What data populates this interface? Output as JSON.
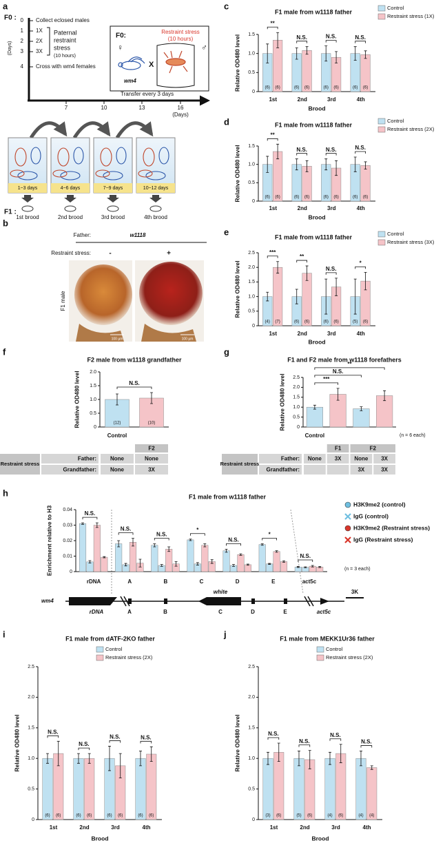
{
  "panel_labels": [
    "a",
    "b",
    "c",
    "d",
    "e",
    "f",
    "g",
    "h",
    "i",
    "j"
  ],
  "panel_a": {
    "generation_f0": "F0 :",
    "days_label": "(Days)",
    "day_ticks": [
      "0",
      "1",
      "2",
      "3",
      "4"
    ],
    "steps": [
      "Collect eclosed males",
      "1X",
      "2X",
      "3X",
      "Cross with wm4 females"
    ],
    "stress_label": [
      "Paternal",
      "restraint",
      "stress",
      "(10 hours)"
    ],
    "box_title": "F0:",
    "box_stress": "Restraint stress",
    "box_hours": "(10 hours)",
    "female_strain": "wm4",
    "cross": "X",
    "transfer": "Transfer every 3 days",
    "timeline_days": [
      "7",
      "10",
      "13",
      "16"
    ],
    "timeline_unit": "(Days)",
    "vials": [
      "1~3 days",
      "4~6 days",
      "7~9 days",
      "10~12 days"
    ],
    "generation_f1": "F1 :",
    "broods": [
      "1st brood",
      "2nd brood",
      "3rd brood",
      "4th brood"
    ]
  },
  "panel_b": {
    "father_label": "Father:",
    "father": "w1118",
    "stress_label": "Restraint stress:",
    "conditions": [
      "-",
      "+"
    ],
    "row_label": "F1 male",
    "scale_bars": [
      "100 µm",
      "100 µm"
    ]
  },
  "chart_data": [
    {
      "type": "bar",
      "title": "F1 male from w1118 father",
      "ylabel": "Relative OD480 level",
      "xlabel": "Brood",
      "categories": [
        "1st",
        "2nd",
        "3rd",
        "4th"
      ],
      "ylim": [
        0,
        1.5
      ],
      "yticks": [
        0,
        0.5,
        {
          "value": 1,
          "label": "1.0"
        },
        1.5
      ],
      "legend": true,
      "series": [
        {
          "name": "Control",
          "color": "#bfe1f1",
          "values": [
            1,
            1,
            1,
            1
          ],
          "errors": [
            0.25,
            0.15,
            0.2,
            0.18
          ],
          "n_labels": [
            "(6)",
            "(6)",
            "(6)",
            "(6)"
          ]
        },
        {
          "name": "Restraint stress (1X)",
          "color": "#f5c4c8",
          "values": [
            1.35,
            1.08,
            0.9,
            0.97
          ],
          "errors": [
            0.2,
            0.1,
            0.15,
            0.1
          ],
          "n_labels": [
            "(6)",
            "(6)",
            "(6)",
            "(6)"
          ]
        }
      ],
      "significance": [
        "**",
        "N.S.",
        "N.S.",
        "N.S."
      ]
    },
    {
      "type": "bar",
      "title": "F1 male from w1118 father",
      "ylabel": "Relative OD480 level",
      "xlabel": "Brood",
      "categories": [
        "1st",
        "2nd",
        "3rd",
        "4th"
      ],
      "ylim": [
        0,
        1.5
      ],
      "yticks": [
        0,
        0.5,
        {
          "value": 1,
          "label": "1.0"
        },
        1.5
      ],
      "legend": true,
      "series": [
        {
          "name": "Control",
          "color": "#bfe1f1",
          "values": [
            1,
            1,
            1,
            1
          ],
          "errors": [
            0.22,
            0.15,
            0.15,
            0.2
          ],
          "n_labels": [
            "(6)",
            "(6)",
            "(6)",
            "(6)"
          ]
        },
        {
          "name": "Restraint stress (2X)",
          "color": "#f5c4c8",
          "values": [
            1.35,
            0.95,
            0.9,
            0.97
          ],
          "errors": [
            0.2,
            0.15,
            0.2,
            0.1
          ],
          "n_labels": [
            "(6)",
            "(6)",
            "(6)",
            "(6)"
          ]
        }
      ],
      "significance": [
        "**",
        "N.S.",
        "N.S.",
        "N.S."
      ]
    },
    {
      "type": "bar",
      "title": "F1 male from w1118 father",
      "ylabel": "Relative OD480 level",
      "xlabel": "Brood",
      "categories": [
        "1st",
        "2nd",
        "3rd",
        "4th"
      ],
      "ylim": [
        0,
        2.5
      ],
      "yticks": [
        0,
        0.5,
        {
          "value": 1,
          "label": "1.0"
        },
        1.5,
        {
          "value": 2,
          "label": "2.0"
        },
        2.5
      ],
      "legend": true,
      "series": [
        {
          "name": "Control",
          "color": "#bfe1f1",
          "values": [
            1,
            1,
            1,
            1
          ],
          "errors": [
            0.15,
            0.25,
            0.6,
            0.6
          ],
          "n_labels": [
            "(4)",
            "(6)",
            "(6)",
            "(5)"
          ]
        },
        {
          "name": "Restraint stress (3X)",
          "color": "#f5c4c8",
          "values": [
            2,
            1.8,
            1.33,
            1.53
          ],
          "errors": [
            0.2,
            0.25,
            0.3,
            0.3
          ],
          "n_labels": [
            "(7)",
            "(6)",
            "(6)",
            "(6)"
          ]
        }
      ],
      "significance": [
        "***",
        "**",
        "N.S.",
        "*"
      ]
    },
    {
      "type": "bar",
      "title": "F2 male from w1118 grandfather",
      "ylabel": "Relative OD480 level",
      "categories": [
        "Control",
        null
      ],
      "ylim": [
        0,
        2
      ],
      "yticks": [
        0,
        0.5,
        {
          "value": 1,
          "label": "1.0"
        },
        1.5,
        {
          "value": 2,
          "label": "2.0"
        }
      ],
      "values": [
        1,
        1.05
      ],
      "errors": [
        0.2,
        0.2
      ],
      "colors": [
        "#bfe1f1",
        "#f5c4c8"
      ],
      "n_labels": [
        "(12)",
        "(10)"
      ],
      "significance": [
        "N.S."
      ]
    },
    {
      "type": "bar",
      "title": "F1 and F2 male from w1118 forefathers",
      "ylabel": "Relative OD480 level",
      "note": "(n = 6 each)",
      "categories": [
        "Control",
        null,
        null,
        null
      ],
      "ylim": [
        0,
        2.5
      ],
      "yticks": [
        0,
        0.5,
        {
          "value": 1,
          "label": "1.0"
        },
        1.5,
        {
          "value": 2,
          "label": "2.0"
        },
        2.5
      ],
      "values": [
        1,
        1.65,
        0.92,
        1.58
      ],
      "errors": [
        0.1,
        0.3,
        0.1,
        0.25
      ],
      "colors": [
        "#bfe1f1",
        "#f5c4c8",
        "#bfe1f1",
        "#f5c4c8"
      ],
      "significance": [
        "***",
        "N.S.",
        "**"
      ]
    },
    {
      "type": "bar",
      "title": "F1 male from w1118 father",
      "ylabel": "Enrichment relative to H3",
      "note": "(n = 3 each)",
      "categories": [
        "rDNA",
        "A",
        "B",
        "C",
        "D",
        "E",
        "act5c"
      ],
      "ylim": [
        0,
        0.04
      ],
      "yticks": [
        0,
        0.01,
        0.02,
        0.03,
        0.04
      ],
      "legend": true,
      "series": [
        {
          "name": "H3K9me2 (control)",
          "color": "#bfe1f1",
          "marker": "circle",
          "marker_color": "#6fbfe0",
          "values": [
            0.031,
            0.018,
            0.017,
            0.0205,
            0.0135,
            0.0175,
            0.003
          ],
          "errors": [
            0.0005,
            0.002,
            0.001,
            0.0005,
            0.001,
            0.0005,
            0.0003
          ]
        },
        {
          "name": "IgG (control)",
          "color": "#bfe1f1",
          "marker": "x",
          "marker_color": "#6fbfe0",
          "values": [
            0.0063,
            0.0045,
            0.004,
            0.005,
            0.004,
            0.005,
            0.0028
          ],
          "errors": [
            0.0008,
            0.0008,
            0.0006,
            0.0008,
            0.0006,
            0.0003,
            0.0003
          ]
        },
        {
          "name": "H3K9me2 (Restraint stress)",
          "color": "#f5c4c8",
          "marker": "circle",
          "marker_color": "#d9362b",
          "values": [
            0.03,
            0.019,
            0.0145,
            0.017,
            0.011,
            0.013,
            0.0035
          ],
          "errors": [
            0.0015,
            0.0025,
            0.0015,
            0.001,
            0.0005,
            0.0005,
            0.0005
          ]
        },
        {
          "name": "IgG (Restraint stress)",
          "color": "#f5c4c8",
          "marker": "x",
          "marker_color": "#d9362b",
          "values": [
            0.0093,
            0.0055,
            0.005,
            0.0065,
            0.0045,
            0.0065,
            0.003
          ],
          "errors": [
            0.0004,
            0.0025,
            0.0015,
            0.0012,
            0.0004,
            0.0005,
            0.0004
          ]
        }
      ],
      "significance": [
        "N.S.",
        "N.S.",
        "N.S.",
        "*",
        "N.S.",
        "*",
        "N.S."
      ]
    },
    {
      "type": "bar",
      "title": "F1 male from dATF-2KO father",
      "ylabel": "Relative OD480 level",
      "xlabel": "Brood",
      "categories": [
        "1st",
        "2nd",
        "3rd",
        "4th"
      ],
      "ylim": [
        0,
        2.5
      ],
      "yticks": [
        0,
        0.5,
        {
          "value": 1,
          "label": "1.0"
        },
        1.5,
        {
          "value": 2,
          "label": "2.0"
        },
        2.5
      ],
      "legend": true,
      "series": [
        {
          "name": "Control",
          "color": "#bfe1f1",
          "values": [
            1,
            1,
            1,
            1
          ],
          "errors": [
            0.08,
            0.08,
            0.2,
            0.12
          ],
          "n_labels": [
            "(6)",
            "(6)",
            "(6)",
            "(6)"
          ]
        },
        {
          "name": "Restraint stress (2X)",
          "color": "#f5c4c8",
          "values": [
            1.08,
            1,
            0.88,
            1.07
          ],
          "errors": [
            0.2,
            0.08,
            0.2,
            0.12
          ],
          "n_labels": [
            "(6)",
            "(6)",
            "(6)",
            "(6)"
          ]
        }
      ],
      "significance": [
        "N.S.",
        "N.S.",
        "N.S.",
        "N.S."
      ]
    },
    {
      "type": "bar",
      "title": "F1 male from MEKK1Ur36 father",
      "ylabel": "Relative OD480 level",
      "xlabel": "Brood",
      "categories": [
        "1st",
        "2nd",
        "3rd",
        "4th"
      ],
      "ylim": [
        0,
        2.5
      ],
      "yticks": [
        0,
        0.5,
        {
          "value": 1,
          "label": "1.0"
        },
        1.5,
        {
          "value": 2,
          "label": "2.0"
        },
        2.5
      ],
      "legend": true,
      "series": [
        {
          "name": "Control",
          "color": "#bfe1f1",
          "values": [
            1,
            1,
            1,
            1
          ],
          "errors": [
            0.1,
            0.12,
            0.1,
            0.12
          ],
          "n_labels": [
            "(3)",
            "(5)",
            "(4)",
            "(4)"
          ]
        },
        {
          "name": "Restraint stress (2X)",
          "color": "#f5c4c8",
          "values": [
            1.1,
            0.98,
            1.08,
            0.85
          ],
          "errors": [
            0.15,
            0.15,
            0.15,
            0.03
          ],
          "n_labels": [
            "(6)",
            "(6)",
            "(6)",
            "(4)"
          ]
        }
      ],
      "significance": [
        "N.S.",
        "N.S.",
        "N.S.",
        "N.S."
      ]
    }
  ],
  "tables": [
    {
      "row_group": "Restraint stress",
      "headers": [
        null,
        "F2"
      ],
      "rows": [
        {
          "label": "Father:",
          "cells": [
            "None",
            "None"
          ]
        },
        {
          "label": "Grandfather:",
          "cells": [
            "None",
            "3X"
          ]
        }
      ]
    },
    {
      "row_group": "Restraint stress",
      "headers": [
        null,
        "F1",
        "F2",
        null
      ],
      "rows": [
        {
          "label": "Father:",
          "cells": [
            "None",
            "3X",
            "None",
            "3X"
          ]
        },
        {
          "label": "Grandfather:",
          "cells": [
            null,
            null,
            "3X",
            "3X"
          ]
        }
      ]
    }
  ],
  "gene_map": {
    "strain": "wm4",
    "features": [
      "rDNA",
      "A",
      "B",
      "C",
      "D",
      "E",
      "act5c"
    ],
    "gene": "white",
    "scale": "3K"
  }
}
